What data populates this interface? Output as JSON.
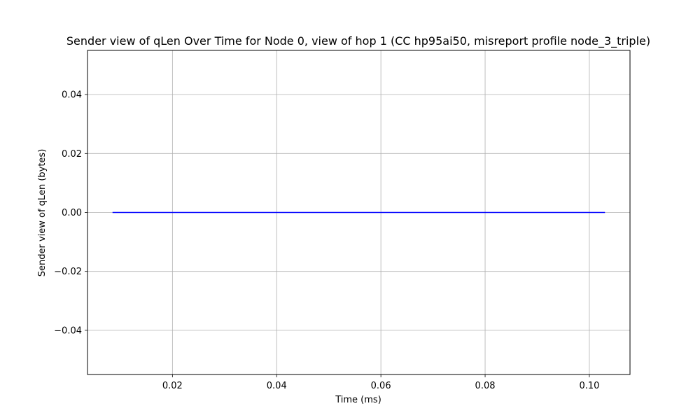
{
  "chart_data": {
    "type": "line",
    "title": "Sender view of qLen Over Time for Node 0, view of hop 1 (CC hp95ai50, misreport profile node_3_triple)",
    "xlabel": "Time (ms)",
    "ylabel": "Sender view of qLen (bytes)",
    "xlim": [
      0.0037,
      0.1078
    ],
    "ylim": [
      -0.055,
      0.055
    ],
    "x_ticks": [
      0.02,
      0.04,
      0.06,
      0.08,
      0.1
    ],
    "x_tick_labels": [
      "0.02",
      "0.04",
      "0.06",
      "0.08",
      "0.10"
    ],
    "y_ticks": [
      -0.04,
      -0.02,
      0.0,
      0.02,
      0.04
    ],
    "y_tick_labels": [
      "−0.04",
      "−0.02",
      "0.00",
      "0.02",
      "0.04"
    ],
    "grid": true,
    "series": [
      {
        "color": "#0000ff",
        "x": [
          0.0085,
          0.103
        ],
        "y": [
          0.0,
          0.0
        ]
      }
    ]
  }
}
